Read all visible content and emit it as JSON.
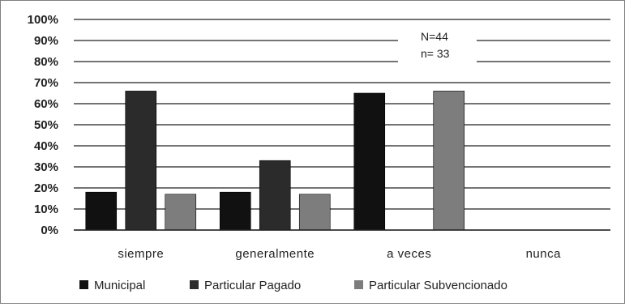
{
  "chart_data": {
    "type": "bar",
    "title": "",
    "xlabel": "",
    "ylabel": "",
    "ylim": [
      0,
      100
    ],
    "yticks": [
      "0%",
      "10%",
      "20%",
      "30%",
      "40%",
      "50%",
      "60%",
      "70%",
      "80%",
      "90%",
      "100%"
    ],
    "categories": [
      "siempre",
      "generalmente",
      "a veces",
      "nunca"
    ],
    "series": [
      {
        "name": "Municipal",
        "color": "#111111",
        "values": [
          18,
          18,
          65,
          0
        ]
      },
      {
        "name": "Particular Pagado",
        "color": "#2b2b2b",
        "values": [
          66,
          33,
          0,
          0
        ]
      },
      {
        "name": "Particular Subvencionado",
        "color": "#7d7d7d",
        "values": [
          17,
          17,
          66,
          0
        ]
      }
    ],
    "annotations": [
      "N=44",
      "n= 33"
    ],
    "grid": true,
    "legend_position": "bottom"
  }
}
